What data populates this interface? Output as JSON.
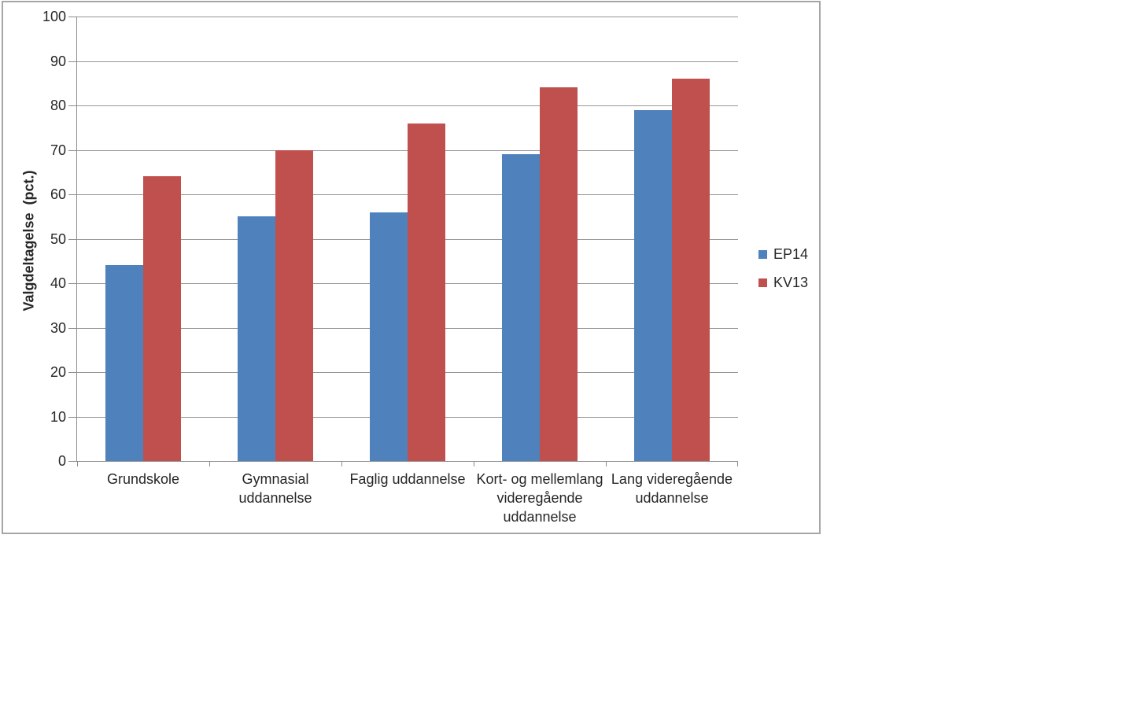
{
  "page": {
    "background_color": "#ffffff"
  },
  "chart": {
    "border_color": "#a6a6a6",
    "axis_color": "#8c8c8c",
    "gridline_color": "#969696",
    "text_color": "#262626"
  },
  "chart_data": {
    "type": "bar",
    "title": "",
    "xlabel": "",
    "ylabel": "Valgdeltagelse  (pct.)",
    "ylim": [
      0,
      100
    ],
    "ytick_step": 10,
    "grid": true,
    "legend_position": "right",
    "categories": [
      "Grundskole",
      "Gymnasial uddannelse",
      "Faglig uddannelse",
      "Kort- og mellemlang videregående uddannelse",
      "Lang videregående uddannelse"
    ],
    "category_label_lines": [
      [
        "Grundskole"
      ],
      [
        "Gymnasial",
        "uddannelse"
      ],
      [
        "Faglig uddannelse"
      ],
      [
        "Kort- og mellemlang",
        "videregående",
        "uddannelse"
      ],
      [
        "Lang videregående",
        "uddannelse"
      ]
    ],
    "series": [
      {
        "name": "EP14",
        "color": "#4f81bd",
        "values": [
          44,
          55,
          56,
          69,
          79
        ]
      },
      {
        "name": "KV13",
        "color": "#c0504d",
        "values": [
          64,
          70,
          76,
          84,
          86
        ]
      }
    ]
  }
}
